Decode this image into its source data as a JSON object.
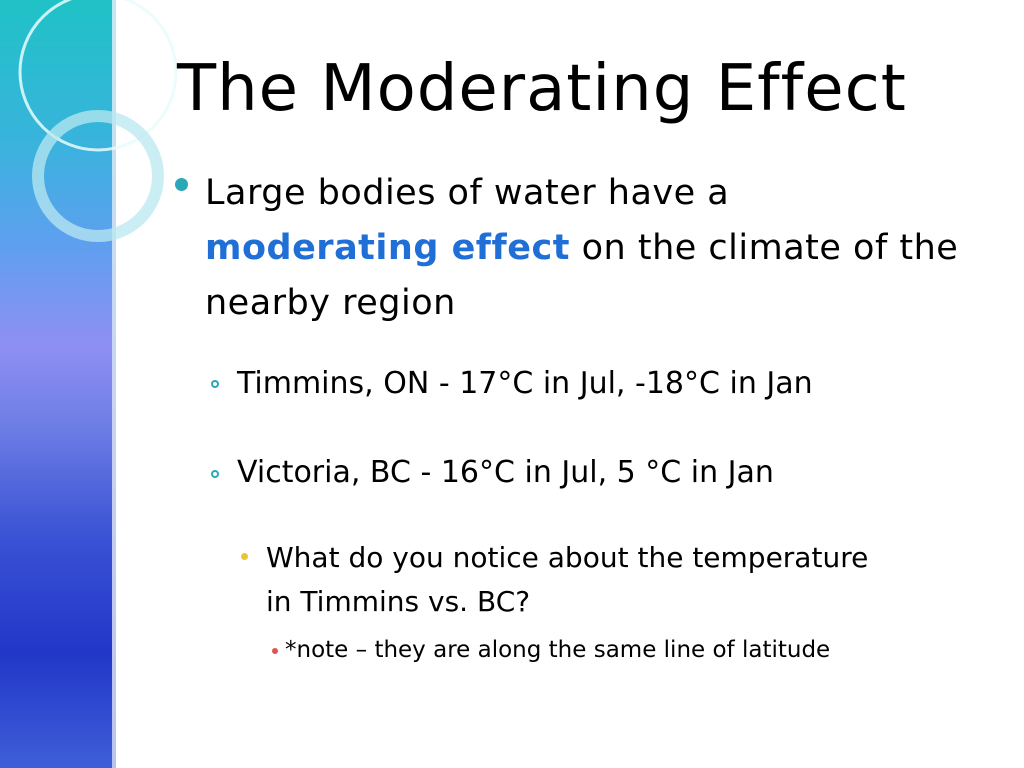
{
  "slide": {
    "title": "The Moderating Effect",
    "point1": {
      "before": "Large bodies of water have a",
      "highlight": "moderating effect",
      "after": "on the climate of the nearby region"
    },
    "subpoints": [
      "Timmins, ON - 17°C in Jul, -18°C in Jan",
      "Victoria, BC - 16°C in Jul, 5 °C in Jan"
    ],
    "question": "What do you notice about the temperature in Timmins vs. BC?",
    "note": "*note – they are along the same line of latitude"
  },
  "colors": {
    "highlight": "#1f6fd6",
    "bullet_level1": "#2aa8b8",
    "bullet_level3": "#e8c43a",
    "bullet_level4": "#e0544c"
  },
  "icons": {
    "level1_bullet": "filled-circle-icon",
    "level2_bullet": "hollow-circle-icon",
    "level3_bullet": "small-dot-icon",
    "level4_bullet": "tiny-dot-icon"
  }
}
